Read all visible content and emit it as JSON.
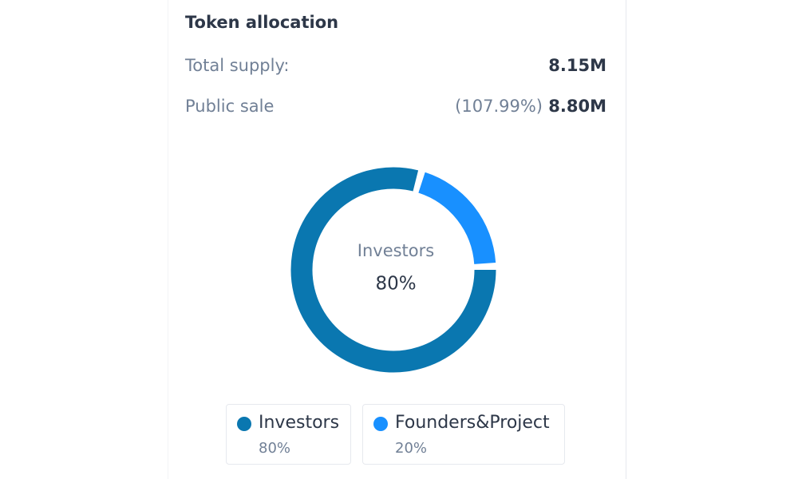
{
  "panel": {
    "title": "Token allocation",
    "rows": [
      {
        "label": "Total supply:",
        "value": "8.15M"
      },
      {
        "label": "Public sale",
        "percent": "(107.99%)",
        "value": "8.80M"
      }
    ]
  },
  "chart_data": {
    "type": "donut",
    "categories": [
      "Investors",
      "Founders&Project"
    ],
    "values": [
      80,
      20
    ],
    "value_labels": [
      "80%",
      "20%"
    ],
    "colors": [
      "#0a77b0",
      "#1890ff"
    ]
  }
}
